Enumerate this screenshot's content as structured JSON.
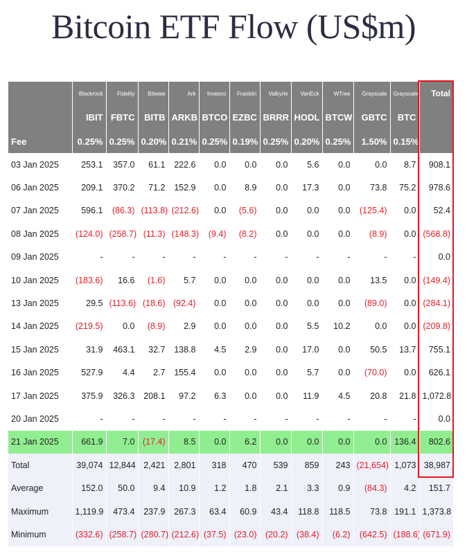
{
  "title": "Bitcoin ETF Flow (US$m)",
  "header": {
    "issuers": [
      "Blackrock",
      "Fidelity",
      "Bitwise",
      "Ark",
      "Invesco",
      "Franklin",
      "Valkyrie",
      "VanEck",
      "WTree",
      "Grayscale",
      "Grayscale"
    ],
    "total_label": "Total",
    "tickers": [
      "IBIT",
      "FBTC",
      "BITB",
      "ARKB",
      "BTCO",
      "EZBC",
      "BRRR",
      "HODL",
      "BTCW",
      "GBTC",
      "BTC"
    ],
    "fee_label": "Fee",
    "fees": [
      "0.25%",
      "0.25%",
      "0.20%",
      "0.21%",
      "0.25%",
      "0.19%",
      "0.25%",
      "0.20%",
      "0.25%",
      "1.50%",
      "0.15%"
    ]
  },
  "rows": [
    {
      "label": "03 Jan 2025",
      "values": [
        "253.1",
        "357.0",
        "61.1",
        "222.6",
        "0.0",
        "0.0",
        "0.0",
        "5.6",
        "0.0",
        "0.0",
        "8.7"
      ],
      "total": "908.1"
    },
    {
      "label": "06 Jan 2025",
      "values": [
        "209.1",
        "370.2",
        "71.2",
        "152.9",
        "0.0",
        "8.9",
        "0.0",
        "17.3",
        "0.0",
        "73.8",
        "75.2"
      ],
      "total": "978.6"
    },
    {
      "label": "07 Jan 2025",
      "values": [
        "596.1",
        "(86.3)",
        "(113.8)",
        "(212.6)",
        "0.0",
        "(5.6)",
        "0.0",
        "0.0",
        "0.0",
        "(125.4)",
        "0.0"
      ],
      "total": "52.4"
    },
    {
      "label": "08 Jan 2025",
      "values": [
        "(124.0)",
        "(258.7)",
        "(11.3)",
        "(148.3)",
        "(9.4)",
        "(8.2)",
        "0.0",
        "0.0",
        "0.0",
        "(8.9)",
        "0.0"
      ],
      "total": "(568.8)"
    },
    {
      "label": "09 Jan 2025",
      "values": [
        "-",
        "-",
        "-",
        "-",
        "-",
        "-",
        "-",
        "-",
        "-",
        "-",
        "-"
      ],
      "total": "0.0"
    },
    {
      "label": "10 Jan 2025",
      "values": [
        "(183.6)",
        "16.6",
        "(1.6)",
        "5.7",
        "0.0",
        "0.0",
        "0.0",
        "0.0",
        "0.0",
        "13.5",
        "0.0"
      ],
      "total": "(149.4)"
    },
    {
      "label": "13 Jan 2025",
      "values": [
        "29.5",
        "(113.6)",
        "(18.6)",
        "(92.4)",
        "0.0",
        "0.0",
        "0.0",
        "0.0",
        "0.0",
        "(89.0)",
        "0.0"
      ],
      "total": "(284.1)"
    },
    {
      "label": "14 Jan 2025",
      "values": [
        "(219.5)",
        "0.0",
        "(8.9)",
        "2.9",
        "0.0",
        "0.0",
        "0.0",
        "5.5",
        "10.2",
        "0.0",
        "0.0"
      ],
      "total": "(209.8)"
    },
    {
      "label": "15 Jan 2025",
      "values": [
        "31.9",
        "463.1",
        "32.7",
        "138.8",
        "4.5",
        "2.9",
        "0.0",
        "17.0",
        "0.0",
        "50.5",
        "13.7"
      ],
      "total": "755.1"
    },
    {
      "label": "16 Jan 2025",
      "values": [
        "527.9",
        "4.4",
        "2.7",
        "155.4",
        "0.0",
        "0.0",
        "0.0",
        "5.7",
        "0.0",
        "(70.0)",
        "0.0"
      ],
      "total": "626.1"
    },
    {
      "label": "17 Jan 2025",
      "values": [
        "375.9",
        "326.3",
        "208.1",
        "97.2",
        "6.3",
        "0.0",
        "0.0",
        "11.9",
        "4.5",
        "20.8",
        "21.8"
      ],
      "total": "1,072.8"
    },
    {
      "label": "20 Jan 2025",
      "values": [
        "-",
        "-",
        "-",
        "-",
        "-",
        "-",
        "-",
        "-",
        "-",
        "-",
        "-"
      ],
      "total": "0.0"
    },
    {
      "label": "21 Jan 2025",
      "values": [
        "661.9",
        "7.0",
        "(17.4)",
        "8.5",
        "0.0",
        "6.2",
        "0.0",
        "0.0",
        "0.0",
        "0.0",
        "136.4"
      ],
      "total": "802.6",
      "highlight": true
    }
  ],
  "stats": [
    {
      "label": "Total",
      "values": [
        "39,074",
        "12,844",
        "2,421",
        "2,801",
        "318",
        "470",
        "539",
        "859",
        "243",
        "(21,654)",
        "1,073"
      ],
      "total": "38,987"
    },
    {
      "label": "Average",
      "values": [
        "152.0",
        "50.0",
        "9.4",
        "10.9",
        "1.2",
        "1.8",
        "2.1",
        "3.3",
        "0.9",
        "(84.3)",
        "4.2"
      ],
      "total": "151.7"
    },
    {
      "label": "Maximum",
      "values": [
        "1,119.9",
        "473.4",
        "237.9",
        "267.3",
        "63.4",
        "60.9",
        "43.4",
        "118.8",
        "118.5",
        "73.8",
        "191.1"
      ],
      "total": "1,373.8"
    },
    {
      "label": "Minimum",
      "values": [
        "(332.6)",
        "(258.7)",
        "(280.7)",
        "(212.6)",
        "(37.5)",
        "(23.0)",
        "(20.2)",
        "(38.4)",
        "(6.2)",
        "(642.5)",
        "(188.6)"
      ],
      "total": "(671.9)"
    }
  ],
  "colors": {
    "header_bg": "#808080",
    "negative": "#e0202a",
    "highlight_row": "#90ee90",
    "stats_bg": "#eef0fa",
    "total_box": "#e8141c"
  }
}
